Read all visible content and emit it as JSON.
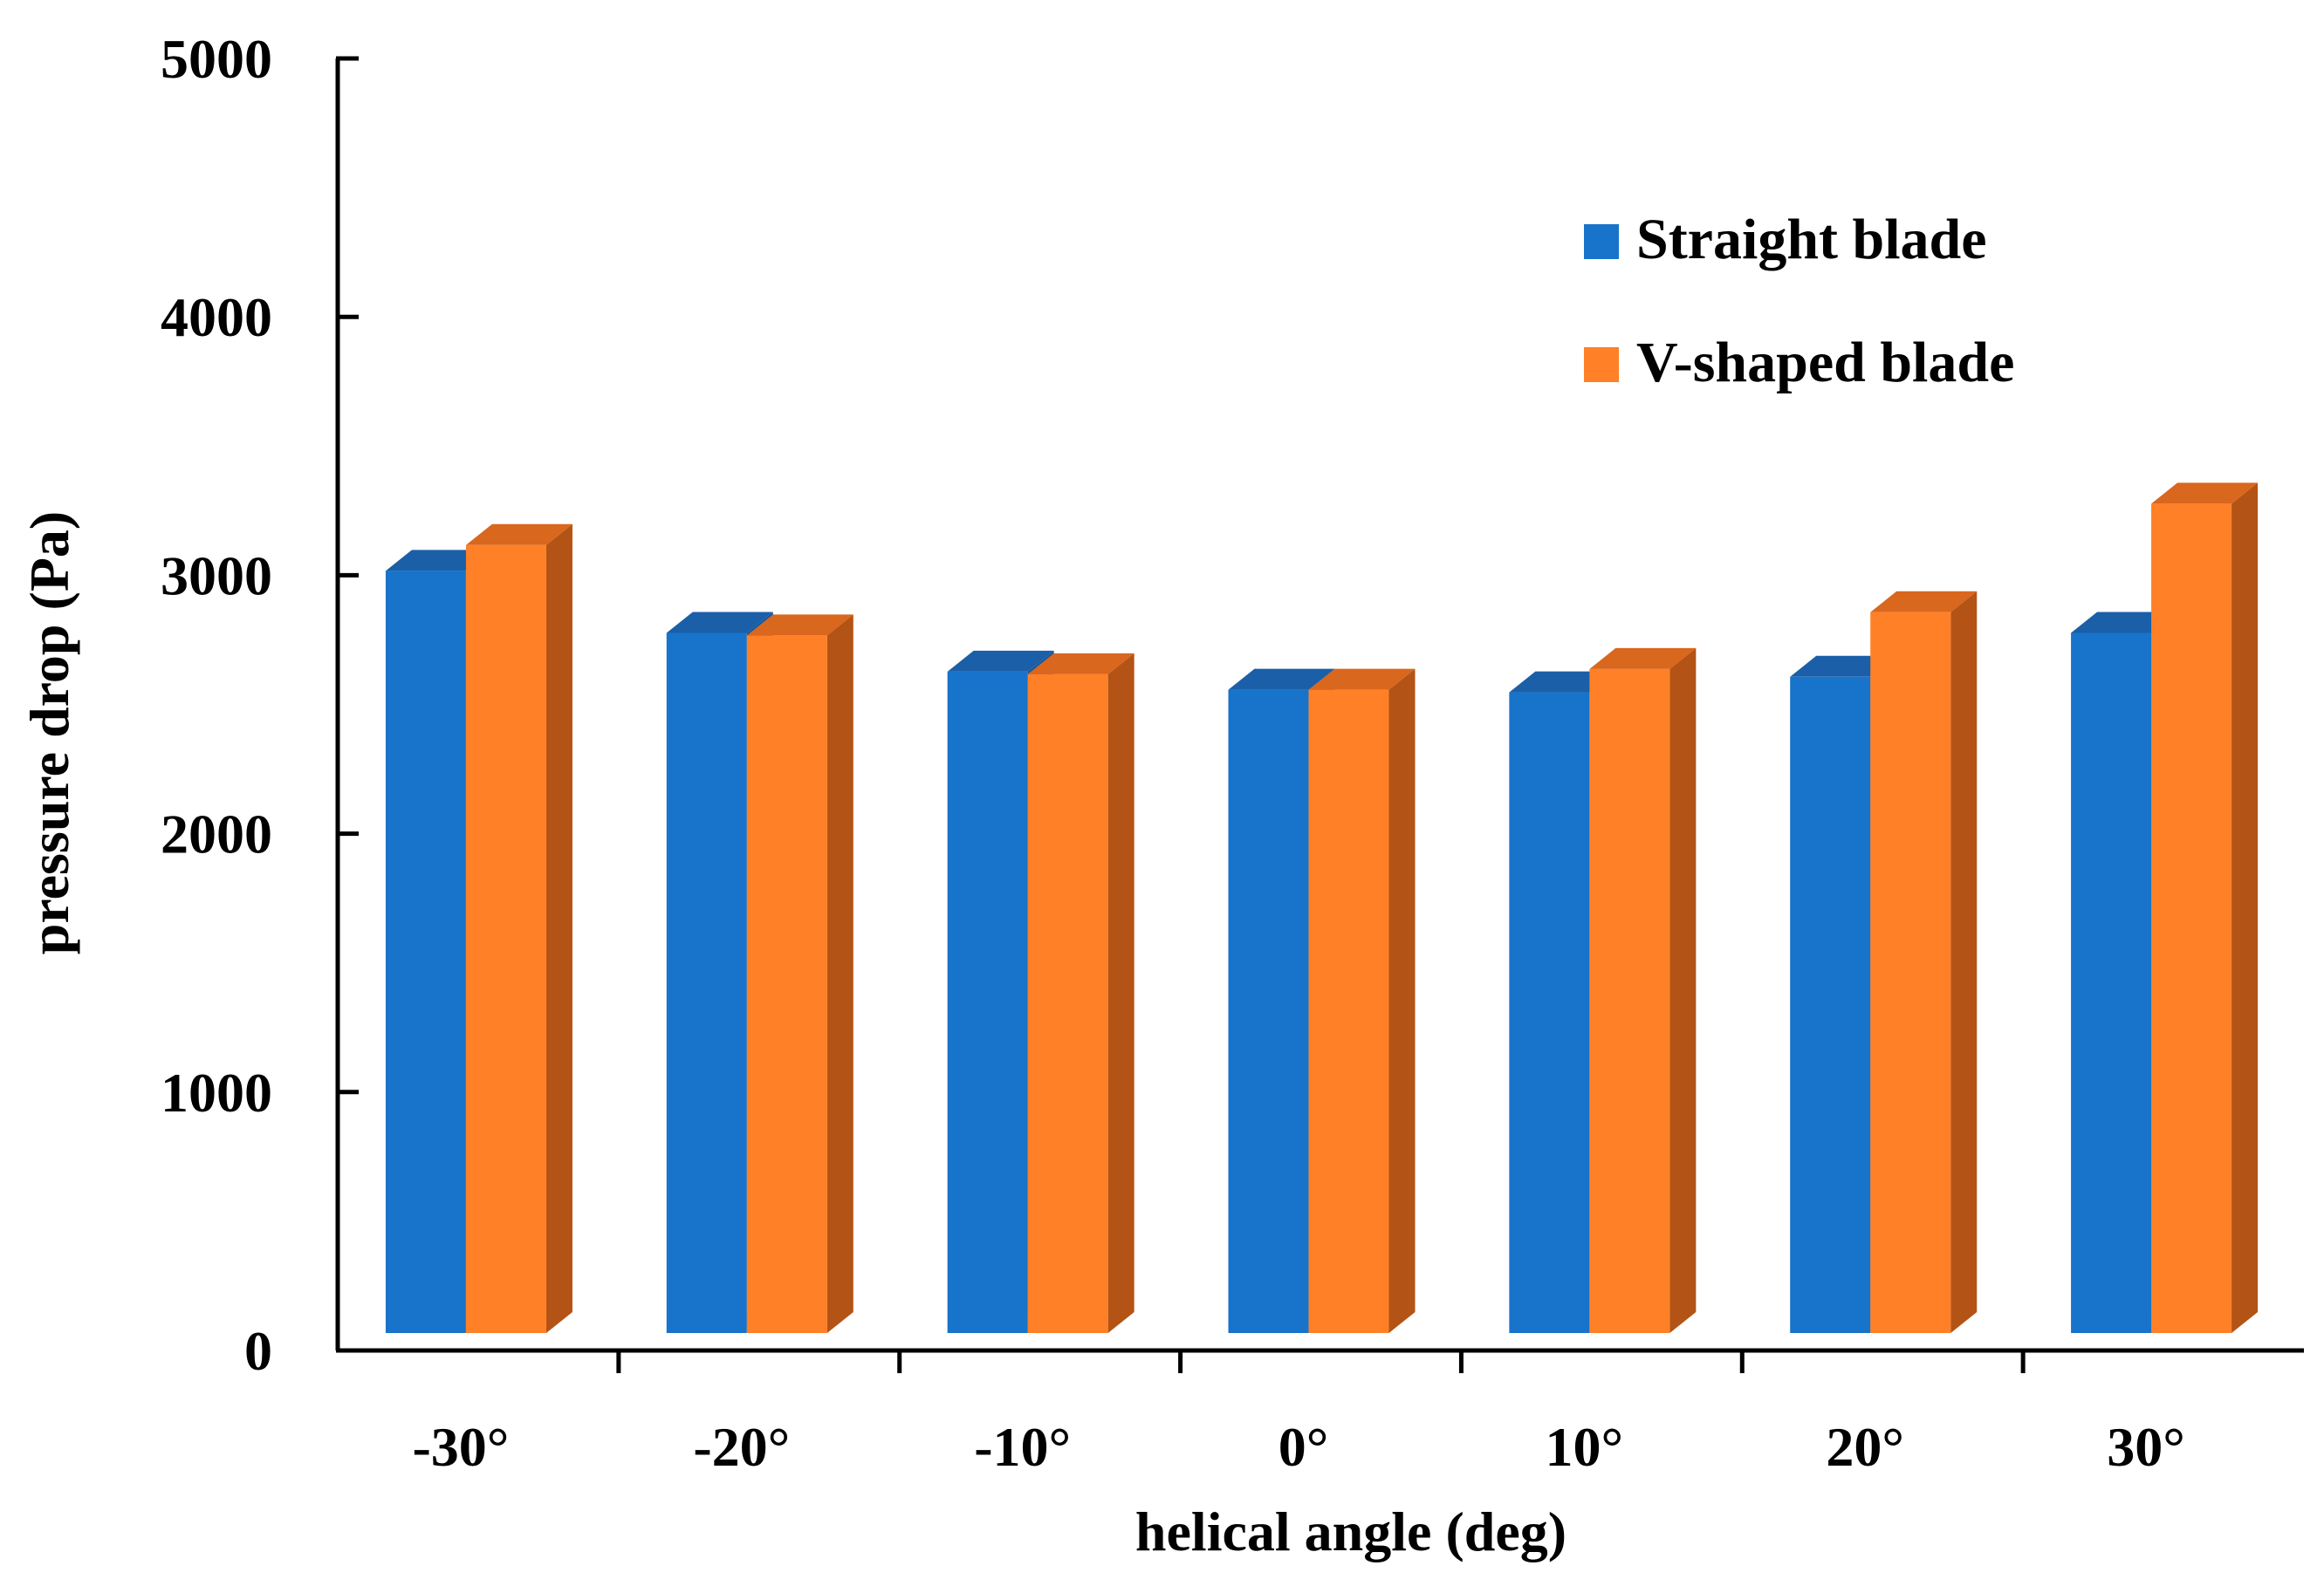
{
  "chart_data": {
    "type": "bar",
    "title": "",
    "xlabel": "helical angle (deg)",
    "ylabel": "pressure drop (Pa)",
    "ylim": [
      0,
      5000
    ],
    "yticks": [
      "0",
      "1000",
      "2000",
      "3000",
      "4000",
      "5000"
    ],
    "categories": [
      "-30°",
      "-20°",
      "-10°",
      "0°",
      "10°",
      "20°",
      "30°"
    ],
    "series": [
      {
        "name": "Straight blade",
        "color": "#1873CA",
        "side_color": "#1458A0",
        "top_color": "#1A5FA8",
        "values": [
          2990,
          2750,
          2600,
          2530,
          2520,
          2580,
          2750
        ]
      },
      {
        "name": "V-shaped blade",
        "color": "#FF8026",
        "side_color": "#B35315",
        "top_color": "#D9671E",
        "values": [
          3090,
          2740,
          2590,
          2530,
          2610,
          2830,
          3250
        ]
      }
    ],
    "legend_position": "top-right",
    "style": "3d-column"
  }
}
